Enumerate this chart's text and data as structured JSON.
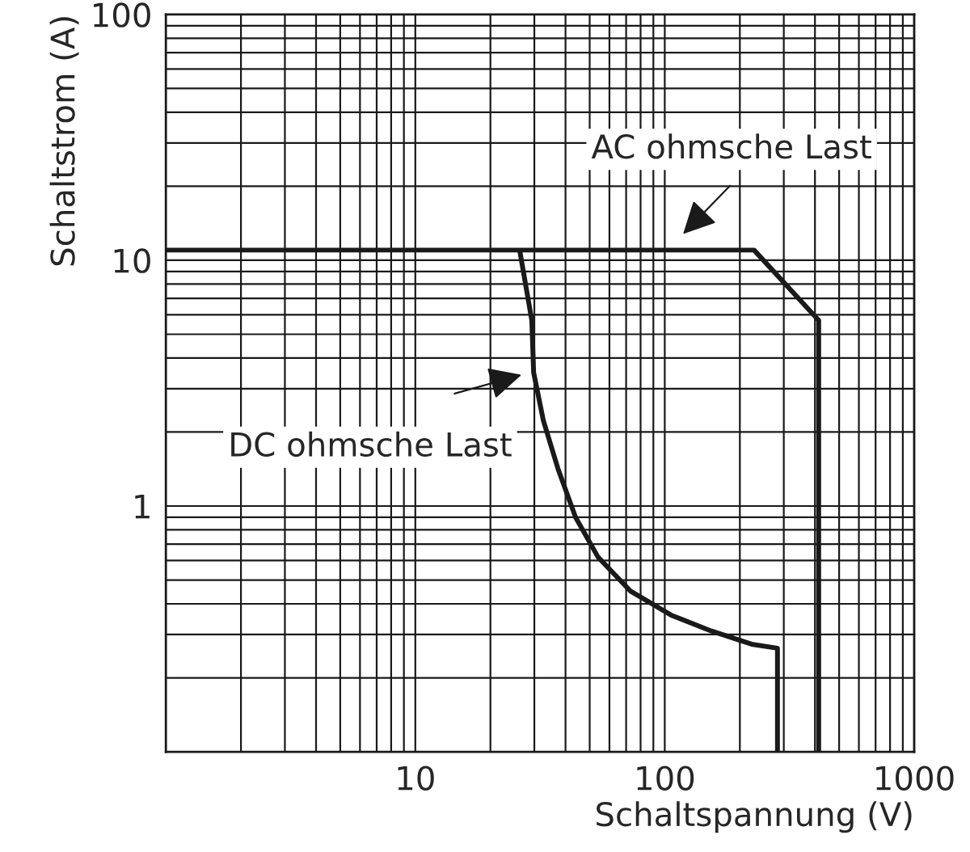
{
  "chart_data": {
    "type": "line",
    "xlabel": "Schaltspannung (V)",
    "ylabel": "Schaltstrom (A)",
    "log": "xy",
    "xlim": [
      1,
      1000
    ],
    "ylim": [
      0.1,
      100
    ],
    "xticks": [
      10,
      100,
      1000
    ],
    "yticks": [
      1,
      10,
      100
    ],
    "grid": true,
    "marker": "none",
    "line_style": "solid",
    "series": [
      {
        "color": "#1a1a1a",
        "x": [
          1,
          228,
          414,
          414
        ],
        "values": [
          11,
          11,
          5.7,
          0.1
        ]
      },
      {
        "color": "#1a1a1a",
        "x": [
          26.2,
          29.3,
          29.8,
          32.6,
          37.3,
          43.9,
          54,
          73,
          106,
          154,
          223,
          283,
          283
        ],
        "values": [
          11,
          5.7,
          3.5,
          2.23,
          1.42,
          0.9,
          0.62,
          0.45,
          0.36,
          0.31,
          0.274,
          0.264,
          0.1
        ]
      }
    ],
    "annotations": [
      "AC ohmsche Last",
      "DC ohmsche Last"
    ]
  }
}
